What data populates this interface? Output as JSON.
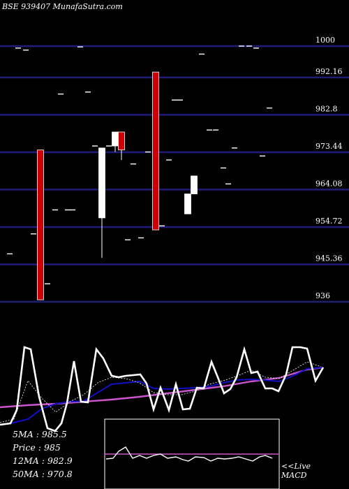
{
  "header": {
    "title": "BSE 939407 MunafaSutra.com"
  },
  "chart_data": {
    "type": "candlestick",
    "ylim": [
      936,
      1000
    ],
    "yticks": [
      1000,
      992.16,
      982.8,
      973.44,
      964.08,
      954.72,
      945.36,
      936
    ],
    "ytick_labels": [
      "1000",
      "992.16",
      "982.8",
      "973.44",
      "964.08",
      "954.72",
      "945.36",
      "936"
    ],
    "candles": [
      {
        "x": 14,
        "o": 948.0,
        "c": 948.0,
        "h": 948.0,
        "l": 948.0
      },
      {
        "x": 26,
        "o": 999.5,
        "c": 999.5,
        "h": 999.5,
        "l": 999.5
      },
      {
        "x": 37,
        "o": 999.0,
        "c": 999.0,
        "h": 999.0,
        "l": 999.0
      },
      {
        "x": 48,
        "o": 953.0,
        "c": 953.0,
        "h": 953.0,
        "l": 953.0
      },
      {
        "x": 58,
        "o": 974.0,
        "c": 936.5,
        "h": 974.0,
        "l": 936.5
      },
      {
        "x": 68,
        "o": 940.5,
        "c": 940.5,
        "h": 940.5,
        "l": 940.5
      },
      {
        "x": 79,
        "o": 959.0,
        "c": 959.0,
        "h": 959.0,
        "l": 959.0
      },
      {
        "x": 87,
        "o": 988.0,
        "c": 988.0,
        "h": 988.0,
        "l": 988.0
      },
      {
        "x": 97,
        "o": 959.0,
        "c": 959.0,
        "h": 959.0,
        "l": 959.0
      },
      {
        "x": 104,
        "o": 959.0,
        "c": 959.0,
        "h": 959.0,
        "l": 959.0
      },
      {
        "x": 115,
        "o": 999.8,
        "c": 999.8,
        "h": 999.8,
        "l": 999.8
      },
      {
        "x": 126,
        "o": 988.5,
        "c": 988.5,
        "h": 988.5,
        "l": 988.5
      },
      {
        "x": 136,
        "o": 975.0,
        "c": 975.0,
        "h": 975.0,
        "l": 975.0
      },
      {
        "x": 146,
        "o": 957.0,
        "c": 974.5,
        "h": 974.5,
        "l": 947.0
      },
      {
        "x": 156,
        "o": 975.0,
        "c": 975.0,
        "h": 975.0,
        "l": 975.0
      },
      {
        "x": 165,
        "o": 975.0,
        "c": 978.5,
        "h": 978.5,
        "l": 973.5
      },
      {
        "x": 174,
        "o": 978.5,
        "c": 974.0,
        "h": 978.5,
        "l": 971.5
      },
      {
        "x": 183,
        "o": 951.5,
        "c": 951.5,
        "h": 951.5,
        "l": 951.5
      },
      {
        "x": 191,
        "o": 970.5,
        "c": 970.5,
        "h": 970.5,
        "l": 970.5
      },
      {
        "x": 202,
        "o": 952.0,
        "c": 952.0,
        "h": 952.0,
        "l": 952.0
      },
      {
        "x": 212,
        "o": 973.5,
        "c": 973.5,
        "h": 973.5,
        "l": 973.5
      },
      {
        "x": 223,
        "o": 993.5,
        "c": 954.0,
        "h": 993.5,
        "l": 954.0
      },
      {
        "x": 232,
        "o": 955.0,
        "c": 955.0,
        "h": 955.0,
        "l": 955.0
      },
      {
        "x": 242,
        "o": 971.5,
        "c": 971.5,
        "h": 971.5,
        "l": 971.5
      },
      {
        "x": 250,
        "o": 986.5,
        "c": 986.5,
        "h": 986.5,
        "l": 986.5
      },
      {
        "x": 258,
        "o": 986.5,
        "c": 986.5,
        "h": 986.5,
        "l": 986.5
      },
      {
        "x": 269,
        "o": 958.0,
        "c": 963.0,
        "h": 963.0,
        "l": 958.0
      },
      {
        "x": 278,
        "o": 963.0,
        "c": 967.5,
        "h": 967.5,
        "l": 963.0
      },
      {
        "x": 289,
        "o": 998.0,
        "c": 998.0,
        "h": 998.0,
        "l": 998.0
      },
      {
        "x": 300,
        "o": 979.0,
        "c": 979.0,
        "h": 979.0,
        "l": 979.0
      },
      {
        "x": 309,
        "o": 979.0,
        "c": 979.0,
        "h": 979.0,
        "l": 979.0
      },
      {
        "x": 320,
        "o": 969.5,
        "c": 969.5,
        "h": 969.5,
        "l": 969.5
      },
      {
        "x": 327,
        "o": 965.5,
        "c": 965.5,
        "h": 965.5,
        "l": 965.5
      },
      {
        "x": 336,
        "o": 974.5,
        "c": 974.5,
        "h": 974.5,
        "l": 974.5
      },
      {
        "x": 346,
        "o": 1000.0,
        "c": 1000.0,
        "h": 1000.0,
        "l": 1000.0
      },
      {
        "x": 357,
        "o": 1000.0,
        "c": 1000.0,
        "h": 1000.0,
        "l": 1000.0
      },
      {
        "x": 367,
        "o": 999.5,
        "c": 999.5,
        "h": 999.5,
        "l": 999.5
      },
      {
        "x": 376,
        "o": 972.5,
        "c": 972.5,
        "h": 972.5,
        "l": 972.5
      },
      {
        "x": 386,
        "o": 984.5,
        "c": 984.5,
        "h": 984.5,
        "l": 984.5
      }
    ],
    "indicator_panel": {
      "price_line": [
        {
          "x": 0,
          "y": 608
        },
        {
          "x": 15,
          "y": 606
        },
        {
          "x": 24,
          "y": 587
        },
        {
          "x": 35,
          "y": 497
        },
        {
          "x": 44,
          "y": 500
        },
        {
          "x": 56,
          "y": 568
        },
        {
          "x": 68,
          "y": 613
        },
        {
          "x": 79,
          "y": 617
        },
        {
          "x": 88,
          "y": 606
        },
        {
          "x": 96,
          "y": 577
        },
        {
          "x": 106,
          "y": 517
        },
        {
          "x": 116,
          "y": 575
        },
        {
          "x": 126,
          "y": 576
        },
        {
          "x": 138,
          "y": 500
        },
        {
          "x": 148,
          "y": 513
        },
        {
          "x": 160,
          "y": 538
        },
        {
          "x": 170,
          "y": 540
        },
        {
          "x": 180,
          "y": 538
        },
        {
          "x": 191,
          "y": 537
        },
        {
          "x": 201,
          "y": 536
        },
        {
          "x": 210,
          "y": 549
        },
        {
          "x": 220,
          "y": 586
        },
        {
          "x": 230,
          "y": 555
        },
        {
          "x": 242,
          "y": 587
        },
        {
          "x": 252,
          "y": 550
        },
        {
          "x": 262,
          "y": 586
        },
        {
          "x": 272,
          "y": 585
        },
        {
          "x": 282,
          "y": 555
        },
        {
          "x": 292,
          "y": 556
        },
        {
          "x": 303,
          "y": 518
        },
        {
          "x": 312,
          "y": 540
        },
        {
          "x": 321,
          "y": 563
        },
        {
          "x": 330,
          "y": 557
        },
        {
          "x": 339,
          "y": 540
        },
        {
          "x": 350,
          "y": 500
        },
        {
          "x": 360,
          "y": 534
        },
        {
          "x": 369,
          "y": 532
        },
        {
          "x": 380,
          "y": 556
        },
        {
          "x": 390,
          "y": 556
        },
        {
          "x": 399,
          "y": 560
        },
        {
          "x": 410,
          "y": 536
        },
        {
          "x": 419,
          "y": 497
        },
        {
          "x": 430,
          "y": 497
        },
        {
          "x": 440,
          "y": 499
        },
        {
          "x": 452,
          "y": 545
        },
        {
          "x": 463,
          "y": 526
        }
      ],
      "ma_short": [
        {
          "x": 0,
          "y": 605
        },
        {
          "x": 20,
          "y": 600
        },
        {
          "x": 40,
          "y": 545
        },
        {
          "x": 60,
          "y": 570
        },
        {
          "x": 80,
          "y": 590
        },
        {
          "x": 100,
          "y": 575
        },
        {
          "x": 120,
          "y": 565
        },
        {
          "x": 140,
          "y": 548
        },
        {
          "x": 160,
          "y": 540
        },
        {
          "x": 180,
          "y": 542
        },
        {
          "x": 200,
          "y": 548
        },
        {
          "x": 220,
          "y": 562
        },
        {
          "x": 240,
          "y": 565
        },
        {
          "x": 260,
          "y": 565
        },
        {
          "x": 280,
          "y": 560
        },
        {
          "x": 300,
          "y": 550
        },
        {
          "x": 320,
          "y": 545
        },
        {
          "x": 340,
          "y": 538
        },
        {
          "x": 360,
          "y": 530
        },
        {
          "x": 380,
          "y": 540
        },
        {
          "x": 400,
          "y": 542
        },
        {
          "x": 420,
          "y": 530
        },
        {
          "x": 440,
          "y": 518
        },
        {
          "x": 460,
          "y": 525
        }
      ],
      "ma_long": [
        {
          "x": 0,
          "y": 608
        },
        {
          "x": 20,
          "y": 605
        },
        {
          "x": 40,
          "y": 600
        },
        {
          "x": 60,
          "y": 585
        },
        {
          "x": 80,
          "y": 578
        },
        {
          "x": 100,
          "y": 575
        },
        {
          "x": 120,
          "y": 574
        },
        {
          "x": 140,
          "y": 562
        },
        {
          "x": 160,
          "y": 550
        },
        {
          "x": 180,
          "y": 548
        },
        {
          "x": 200,
          "y": 546
        },
        {
          "x": 220,
          "y": 556
        },
        {
          "x": 240,
          "y": 557
        },
        {
          "x": 260,
          "y": 556
        },
        {
          "x": 280,
          "y": 555
        },
        {
          "x": 300,
          "y": 553
        },
        {
          "x": 320,
          "y": 548
        },
        {
          "x": 340,
          "y": 544
        },
        {
          "x": 360,
          "y": 543
        },
        {
          "x": 380,
          "y": 544
        },
        {
          "x": 400,
          "y": 546
        },
        {
          "x": 420,
          "y": 538
        },
        {
          "x": 440,
          "y": 528
        },
        {
          "x": 463,
          "y": 526
        }
      ],
      "ma_slow": [
        {
          "x": 0,
          "y": 583
        },
        {
          "x": 40,
          "y": 580
        },
        {
          "x": 80,
          "y": 578
        },
        {
          "x": 120,
          "y": 575
        },
        {
          "x": 160,
          "y": 572
        },
        {
          "x": 200,
          "y": 568
        },
        {
          "x": 240,
          "y": 563
        },
        {
          "x": 280,
          "y": 558
        },
        {
          "x": 320,
          "y": 553
        },
        {
          "x": 360,
          "y": 546
        },
        {
          "x": 400,
          "y": 541
        },
        {
          "x": 440,
          "y": 529
        },
        {
          "x": 463,
          "y": 526
        }
      ]
    },
    "macd_panel": {
      "signal_level": 0.5,
      "macd_line": [
        {
          "x": 152,
          "y": 657
        },
        {
          "x": 162,
          "y": 656
        },
        {
          "x": 170,
          "y": 646
        },
        {
          "x": 180,
          "y": 640
        },
        {
          "x": 190,
          "y": 656
        },
        {
          "x": 200,
          "y": 652
        },
        {
          "x": 210,
          "y": 656
        },
        {
          "x": 220,
          "y": 652
        },
        {
          "x": 230,
          "y": 650
        },
        {
          "x": 240,
          "y": 656
        },
        {
          "x": 252,
          "y": 654
        },
        {
          "x": 262,
          "y": 658
        },
        {
          "x": 270,
          "y": 660
        },
        {
          "x": 280,
          "y": 654
        },
        {
          "x": 292,
          "y": 655
        },
        {
          "x": 302,
          "y": 660
        },
        {
          "x": 312,
          "y": 656
        },
        {
          "x": 322,
          "y": 657
        },
        {
          "x": 332,
          "y": 656
        },
        {
          "x": 342,
          "y": 654
        },
        {
          "x": 352,
          "y": 657
        },
        {
          "x": 362,
          "y": 660
        },
        {
          "x": 372,
          "y": 654
        },
        {
          "x": 380,
          "y": 652
        },
        {
          "x": 390,
          "y": 656
        }
      ]
    },
    "stats": {
      "ma5": "5MA : 985.5",
      "price": "Price  : 985",
      "ma12": "12MA : 982.9",
      "ma50": "50MA : 970.8"
    },
    "macd_label_line1": "<<Live",
    "macd_label_line2": "MACD",
    "colors": {
      "grid": "#1e1e78",
      "up": "#ffffff",
      "down": "#cc0000",
      "short_ma": "#ffffff",
      "long_ma": "#1010c8",
      "slow_ma": "#cc55cc",
      "macd_signal": "#cc55cc"
    }
  }
}
